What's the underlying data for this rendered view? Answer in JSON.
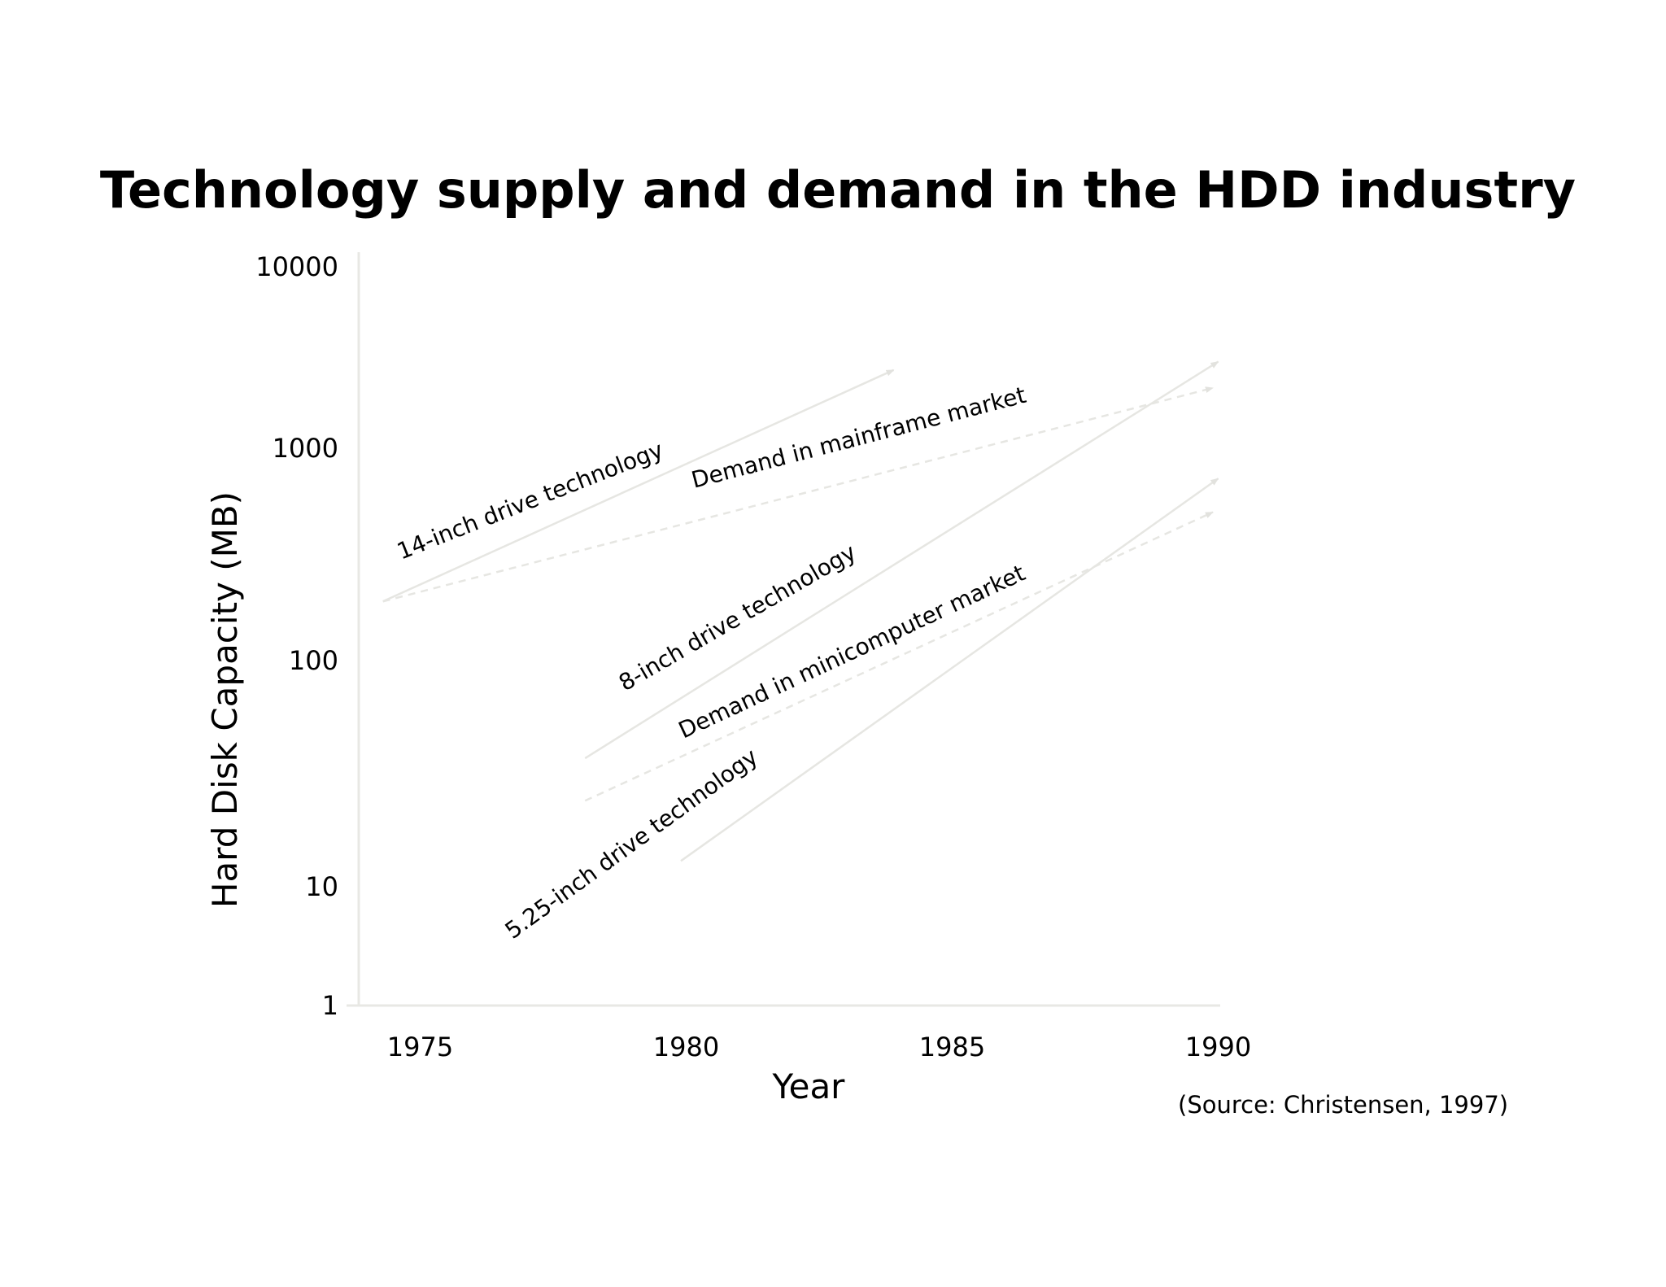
{
  "chart_data": {
    "type": "line",
    "title": "Technology supply and demand in the HDD industry",
    "xlabel": "Year",
    "ylabel": "Hard Disk Capacity (MB)",
    "yscale": "log",
    "ylim": [
      1,
      10000
    ],
    "xlim": [
      1974,
      1990.5
    ],
    "xticks": [
      "1975",
      "1980",
      "1985",
      "1990"
    ],
    "yticks": [
      "1",
      "10",
      "100",
      "1000",
      "10000"
    ],
    "grid": false,
    "legend": "none",
    "source": "(Source: Christensen, 1997)",
    "series": [
      {
        "name": "14-inch drive technology",
        "style": "solid",
        "x": [
          1974.3,
          1983.9
        ],
        "y": [
          190,
          2700
        ]
      },
      {
        "name": "Demand in mainframe market",
        "style": "dashed",
        "x": [
          1974.3,
          1989.9
        ],
        "y": [
          190,
          2150
        ]
      },
      {
        "name": "8-inch drive technology",
        "style": "solid",
        "x": [
          1978.1,
          1990.0
        ],
        "y": [
          37,
          3000
        ]
      },
      {
        "name": "Demand in minicomputer market",
        "style": "dashed",
        "x": [
          1978.1,
          1989.9
        ],
        "y": [
          24,
          500
        ]
      },
      {
        "name": "5.25-inch drive technology",
        "style": "solid",
        "x": [
          1979.9,
          1990.0
        ],
        "y": [
          13,
          720
        ]
      }
    ],
    "line_color": "#e6e6e2",
    "axis_color": "#e8e8e4"
  }
}
